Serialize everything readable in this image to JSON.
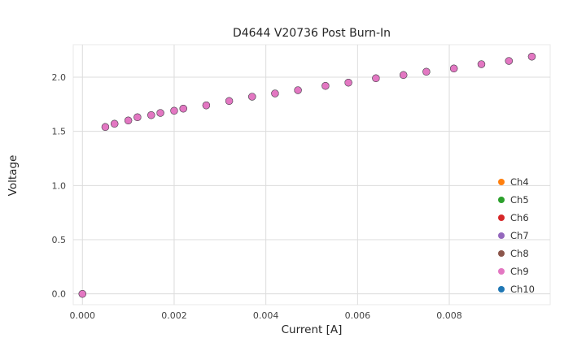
{
  "chart_data": {
    "type": "scatter",
    "title": "D4644 V20736 Post Burn-In",
    "xlabel": "Current [A]",
    "ylabel": "Voltage",
    "xlim": [
      -0.0002,
      0.0102
    ],
    "ylim": [
      -0.1,
      2.3
    ],
    "xticks": [
      0.0,
      0.002,
      0.004,
      0.006,
      0.008
    ],
    "xtick_labels": [
      "0.000",
      "0.002",
      "0.004",
      "0.006",
      "0.008"
    ],
    "yticks": [
      0.0,
      0.5,
      1.0,
      1.5,
      2.0
    ],
    "ytick_labels": [
      "0.0",
      "0.5",
      "1.0",
      "1.5",
      "2.0"
    ],
    "grid": true,
    "grid_color": "#dcdcdc",
    "background_color": "#ffffff",
    "legend_position": "lower right",
    "series_overlap": true,
    "top_series": "Ch9",
    "x": [
      0.0,
      0.0005,
      0.0007,
      0.001,
      0.0012,
      0.0015,
      0.0017,
      0.002,
      0.0022,
      0.0027,
      0.0032,
      0.0037,
      0.0042,
      0.0047,
      0.0053,
      0.0058,
      0.0064,
      0.007,
      0.0075,
      0.0081,
      0.0087,
      0.0093,
      0.0098
    ],
    "y": [
      0.0,
      1.54,
      1.57,
      1.6,
      1.63,
      1.65,
      1.67,
      1.69,
      1.71,
      1.74,
      1.78,
      1.82,
      1.85,
      1.88,
      1.92,
      1.95,
      1.99,
      2.02,
      2.05,
      2.08,
      2.12,
      2.15,
      2.19
    ],
    "series": [
      {
        "name": "Ch4",
        "color": "#ff7f0e"
      },
      {
        "name": "Ch5",
        "color": "#2ca02c"
      },
      {
        "name": "Ch6",
        "color": "#d62728"
      },
      {
        "name": "Ch7",
        "color": "#9467bd"
      },
      {
        "name": "Ch8",
        "color": "#8c564b"
      },
      {
        "name": "Ch9",
        "color": "#e377c2"
      },
      {
        "name": "Ch10",
        "color": "#1f77b4"
      }
    ]
  }
}
